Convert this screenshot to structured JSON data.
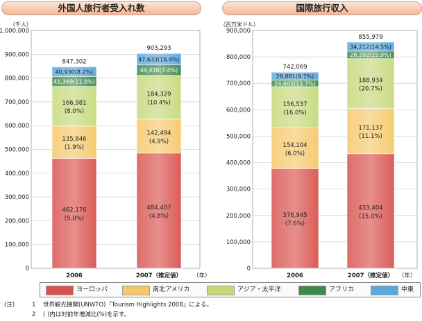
{
  "titles": {
    "left": "外国人旅行者受入れ数",
    "right": "国際旅行収入"
  },
  "legend": [
    {
      "label": "ヨーロッパ",
      "color": "#d9534e"
    },
    {
      "label": "南北アメリカ",
      "color": "#f6c86a"
    },
    {
      "label": "アジア・太平洋",
      "color": "#c6d97a"
    },
    {
      "label": "アフリカ",
      "color": "#3e8a4a"
    },
    {
      "label": "中東",
      "color": "#5ba8dc"
    }
  ],
  "notes": {
    "prefix": "(注)",
    "lines": [
      {
        "num": "1",
        "text": "世界観光機関(UNWTO)「Tourism Highlights 2008」による。"
      },
      {
        "num": "2",
        "text": "(  )内は対前年増減比(%)を示す。"
      }
    ]
  },
  "chart_data": [
    {
      "type": "bar",
      "stacked": true,
      "title": "外国人旅行者受入れ数",
      "unit_label": "（千人）",
      "x_unit": "（年）",
      "categories": [
        "2006",
        "2007（推定値）"
      ],
      "ylim": [
        0,
        1000000
      ],
      "yticks": [
        "0",
        "100,000",
        "200,000",
        "300,000",
        "400,000",
        "500,000",
        "600,000",
        "700,000",
        "800,000",
        "900,000",
        "1,000,000"
      ],
      "grid": true,
      "totals": [
        "847,302",
        "903,293"
      ],
      "total_values": [
        847302,
        903293
      ],
      "series": [
        {
          "name": "ヨーロッパ",
          "values": [
            462176,
            484407
          ],
          "labels": [
            "462,176",
            "484,407"
          ],
          "changes": [
            "(5.0%)",
            "(4.8%)"
          ]
        },
        {
          "name": "南北アメリカ",
          "values": [
            135846,
            142494
          ],
          "labels": [
            "135,846",
            "142,494"
          ],
          "changes": [
            "(1.9%)",
            "(4.9%)"
          ]
        },
        {
          "name": "アジア・太平洋",
          "values": [
            166981,
            184329
          ],
          "labels": [
            "166,981",
            "184,329"
          ],
          "changes": [
            "(8.0%)",
            "(10.4%)"
          ]
        },
        {
          "name": "アフリカ",
          "values": [
            41369,
            44430
          ],
          "labels": [
            "41,369",
            "44,430"
          ],
          "changes": [
            "(11.0%)",
            "(7.4%)"
          ]
        },
        {
          "name": "中東",
          "values": [
            40930,
            47633
          ],
          "labels": [
            "40,930",
            "47,633"
          ],
          "changes": [
            "(8.2%)",
            "(16.4%)"
          ]
        }
      ]
    },
    {
      "type": "bar",
      "stacked": true,
      "title": "国際旅行収入",
      "unit_label": "（百万米ドル）",
      "x_unit": "（年）",
      "categories": [
        "2006",
        "2007（推定値）"
      ],
      "ylim": [
        0,
        900000
      ],
      "yticks": [
        "0",
        "100,000",
        "200,000",
        "300,000",
        "400,000",
        "500,000",
        "600,000",
        "700,000",
        "800,000",
        "900,000"
      ],
      "grid": true,
      "totals": [
        "742,069",
        "855,979"
      ],
      "total_values": [
        742069,
        855979
      ],
      "series": [
        {
          "name": "ヨーロッパ",
          "values": [
            376945,
            433404
          ],
          "labels": [
            "376,945",
            "433,404"
          ],
          "changes": [
            "(7.6%)",
            "(15.0%)"
          ]
        },
        {
          "name": "南北アメリカ",
          "values": [
            154104,
            171137
          ],
          "labels": [
            "154,104",
            "171,137"
          ],
          "changes": [
            "(6.0%)",
            "(11.1%)"
          ]
        },
        {
          "name": "アジア・太平洋",
          "values": [
            156537,
            188934
          ],
          "labels": [
            "156,537",
            "188,934"
          ],
          "changes": [
            "(16.0%)",
            "(20.7%)"
          ]
        },
        {
          "name": "アフリカ",
          "values": [
            24602,
            28292
          ],
          "labels": [
            "24,602",
            "28,292"
          ],
          "changes": [
            "(12.7%)",
            "(15.0%)"
          ]
        },
        {
          "name": "中東",
          "values": [
            29881,
            34212
          ],
          "labels": [
            "29,881",
            "34,212"
          ],
          "changes": [
            "(9.7%)",
            "(14.5%)"
          ]
        }
      ]
    }
  ]
}
